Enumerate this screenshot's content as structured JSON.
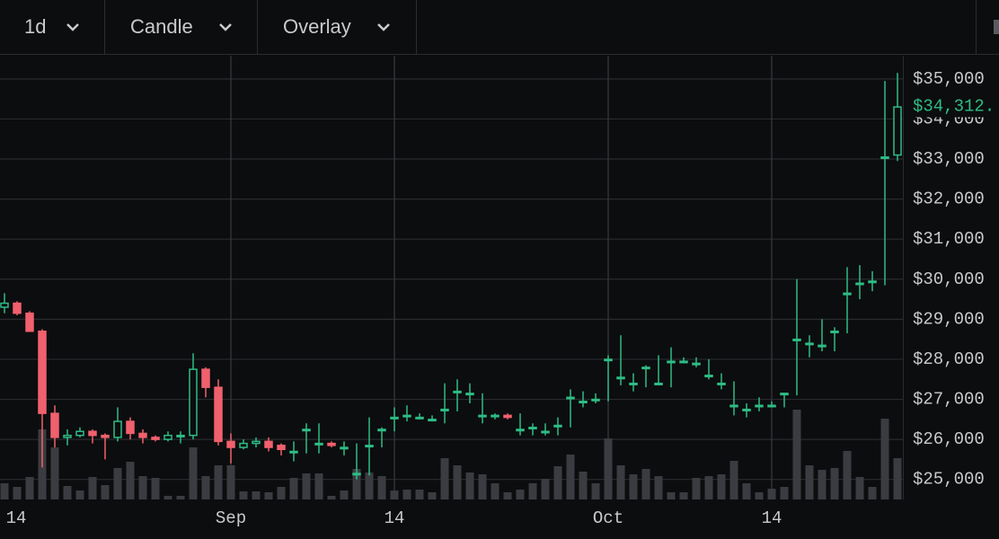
{
  "toolbar": {
    "interval": "1d",
    "chart_style": "Candle",
    "overlay": "Overlay"
  },
  "chart_data": {
    "type": "candlestick",
    "categories": [
      "14",
      null,
      null,
      null,
      null,
      null,
      null,
      null,
      null,
      null,
      null,
      null,
      null,
      null,
      null,
      null,
      null,
      null,
      "Sep",
      null,
      null,
      null,
      null,
      null,
      null,
      null,
      null,
      null,
      null,
      null,
      null,
      "14",
      null,
      null,
      null,
      null,
      null,
      null,
      null,
      null,
      null,
      null,
      null,
      null,
      null,
      null,
      null,
      null,
      "Oct",
      null,
      null,
      null,
      null,
      null,
      null,
      null,
      null,
      null,
      null,
      null,
      null,
      "14",
      null,
      null,
      null,
      null,
      null,
      null,
      null,
      null,
      null,
      null
    ],
    "open": [
      29300,
      29400,
      29150,
      28700,
      26650,
      26050,
      26100,
      26200,
      26100,
      26050,
      26450,
      26150,
      26050,
      26000,
      26100,
      26100,
      27750,
      27300,
      25950,
      25800,
      25900,
      25950,
      25850,
      25700,
      26250,
      25900,
      25900,
      25800,
      25150,
      25850,
      26250,
      26550,
      26600,
      26550,
      26500,
      26750,
      27200,
      27150,
      26600,
      26600,
      26600,
      26250,
      26300,
      26200,
      26350,
      27050,
      26950,
      27000,
      28000,
      27550,
      27400,
      27800,
      27400,
      27950,
      27950,
      27900,
      27600,
      27400,
      26850,
      26750,
      26850,
      26850,
      27150,
      28500,
      28400,
      28350,
      28700,
      29650,
      29900,
      29950,
      33050,
      33100
    ],
    "high": [
      29650,
      29450,
      29200,
      28750,
      26850,
      26250,
      26300,
      26250,
      26150,
      26800,
      26550,
      26250,
      26100,
      26200,
      26200,
      28150,
      27800,
      27500,
      26150,
      26000,
      26050,
      26050,
      25900,
      25950,
      26400,
      26400,
      25950,
      25950,
      25900,
      26550,
      26300,
      26800,
      26850,
      26650,
      26600,
      27400,
      27500,
      27400,
      27150,
      26650,
      26650,
      26650,
      26400,
      26400,
      26550,
      27250,
      27200,
      27150,
      28100,
      28600,
      27650,
      27850,
      28100,
      28300,
      28050,
      28050,
      28000,
      27650,
      27450,
      26900,
      27050,
      26950,
      27150,
      30000,
      28600,
      29000,
      28800,
      30300,
      30350,
      30200,
      34950,
      35150
    ],
    "low": [
      29150,
      29100,
      28700,
      25300,
      25800,
      25850,
      26050,
      25900,
      25500,
      25950,
      26000,
      25900,
      25950,
      25950,
      25900,
      26000,
      27050,
      25850,
      25400,
      25750,
      25800,
      25700,
      25600,
      25450,
      25650,
      25650,
      25800,
      25600,
      25000,
      25100,
      25800,
      26200,
      26450,
      26500,
      26450,
      26400,
      26700,
      26900,
      26400,
      26500,
      26500,
      26100,
      26100,
      26100,
      26100,
      26300,
      26800,
      26900,
      26950,
      27350,
      27200,
      27300,
      27350,
      27300,
      27900,
      27800,
      27500,
      27250,
      26600,
      26550,
      26700,
      26800,
      26800,
      27100,
      28050,
      28200,
      28200,
      28650,
      29500,
      29700,
      29850,
      32950
    ],
    "close": [
      29400,
      29150,
      28700,
      26650,
      26050,
      26100,
      26200,
      26100,
      26050,
      26450,
      26150,
      26050,
      26000,
      26100,
      26100,
      27750,
      27300,
      25950,
      25800,
      25900,
      25950,
      25800,
      25750,
      25700,
      26250,
      25900,
      25850,
      25800,
      25150,
      25850,
      26250,
      26550,
      26600,
      26550,
      26500,
      26750,
      27200,
      27150,
      26600,
      26600,
      26550,
      26250,
      26300,
      26200,
      26350,
      27050,
      26950,
      27000,
      28000,
      27550,
      27400,
      27800,
      27400,
      27950,
      27950,
      27900,
      27600,
      27400,
      26850,
      26750,
      26850,
      26850,
      27150,
      28500,
      28400,
      28350,
      28700,
      29650,
      29900,
      29950,
      33050,
      34300
    ],
    "volumes": [
      18,
      14,
      25,
      78,
      58,
      15,
      10,
      25,
      16,
      35,
      42,
      26,
      24,
      4,
      4,
      58,
      26,
      38,
      38,
      9,
      9,
      8,
      14,
      24,
      29,
      29,
      4,
      10,
      34,
      30,
      26,
      10,
      11,
      11,
      8,
      46,
      38,
      30,
      28,
      18,
      8,
      11,
      18,
      23,
      37,
      50,
      31,
      18,
      68,
      38,
      28,
      34,
      26,
      8,
      8,
      24,
      26,
      28,
      43,
      18,
      8,
      12,
      14,
      100,
      38,
      33,
      35,
      54,
      25,
      14,
      90,
      46
    ],
    "up_color": "#2ebd85",
    "down_color": "#f0616d",
    "volume_color": "#3b3c41",
    "ylim": [
      24500,
      35580
    ],
    "yticks": [
      {
        "value": 25000,
        "label": "$25,000"
      },
      {
        "value": 26000,
        "label": "$26,000"
      },
      {
        "value": 27000,
        "label": "$27,000"
      },
      {
        "value": 28000,
        "label": "$28,000"
      },
      {
        "value": 29000,
        "label": "$29,000"
      },
      {
        "value": 30000,
        "label": "$30,000"
      },
      {
        "value": 31000,
        "label": "$31,000"
      },
      {
        "value": 32000,
        "label": "$32,000"
      },
      {
        "value": 33000,
        "label": "$33,000"
      },
      {
        "value": 34000,
        "label": "$34,000"
      },
      {
        "value": 35000,
        "label": "$35,000"
      }
    ],
    "last_price": {
      "value": 34312,
      "label": "$34,312."
    },
    "grid": true
  }
}
